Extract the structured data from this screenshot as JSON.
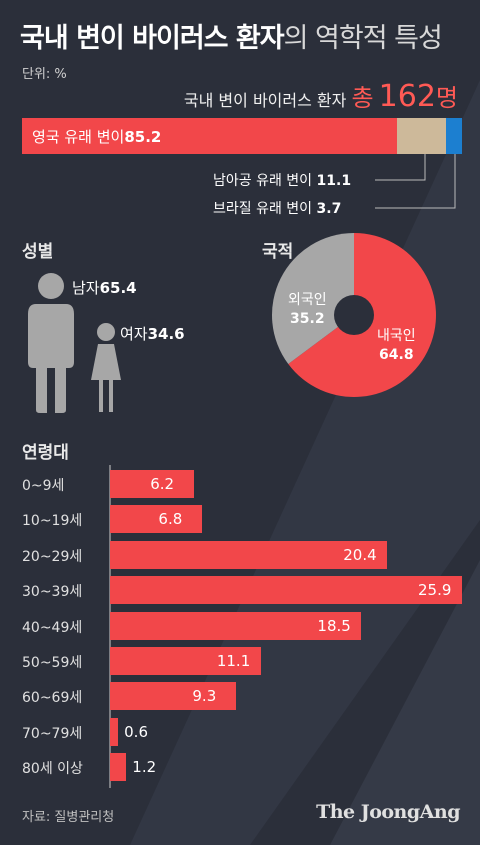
{
  "title_bold": "국내 변이 바이러스 환자",
  "title_rest": "의 역학적 특성",
  "unit": "단위: %",
  "total": {
    "prefix": "국내 변이 바이러스 환자",
    "word": "총",
    "value": "162",
    "suffix": "명"
  },
  "variants": {
    "uk_label": "영국 유래 변이",
    "uk_value": "85.2",
    "sa_label": "남아공 유래 변이",
    "sa_value": "11.1",
    "br_label": "브라질 유래 변이",
    "br_value": "3.7"
  },
  "gender": {
    "heading": "성별",
    "male_label": "남자",
    "male_value": "65.4",
    "female_label": "여자",
    "female_value": "34.6"
  },
  "nationality": {
    "heading": "국적",
    "foreign_label": "외국인",
    "foreign_value": "35.2",
    "domestic_label": "내국인",
    "domestic_value": "64.8"
  },
  "age_heading": "연령대",
  "colors": {
    "accent": "#f2474a",
    "south_africa": "#cdb99a",
    "brazil": "#1c7fd0",
    "neutral": "#a7a7a7",
    "background": "#2b2f3a"
  },
  "chart_data": [
    {
      "type": "bar",
      "orientation": "horizontal-stacked",
      "categories": [
        "영국 유래 변이",
        "남아공 유래 변이",
        "브라질 유래 변이"
      ],
      "values": [
        85.2,
        11.1,
        3.7
      ]
    },
    {
      "type": "bar",
      "title": "성별",
      "categories": [
        "남자",
        "여자"
      ],
      "values": [
        65.4,
        34.6
      ]
    },
    {
      "type": "pie",
      "title": "국적",
      "categories": [
        "내국인",
        "외국인"
      ],
      "values": [
        64.8,
        35.2
      ]
    },
    {
      "type": "bar",
      "orientation": "horizontal",
      "title": "연령대",
      "categories": [
        "0~9세",
        "10~19세",
        "20~29세",
        "30~39세",
        "40~49세",
        "50~59세",
        "60~69세",
        "70~79세",
        "80세 이상"
      ],
      "values": [
        6.2,
        6.8,
        20.4,
        25.9,
        18.5,
        11.1,
        9.3,
        0.6,
        1.2
      ]
    }
  ],
  "source": "자료: 질병관리청",
  "brand": "The JoongAng"
}
